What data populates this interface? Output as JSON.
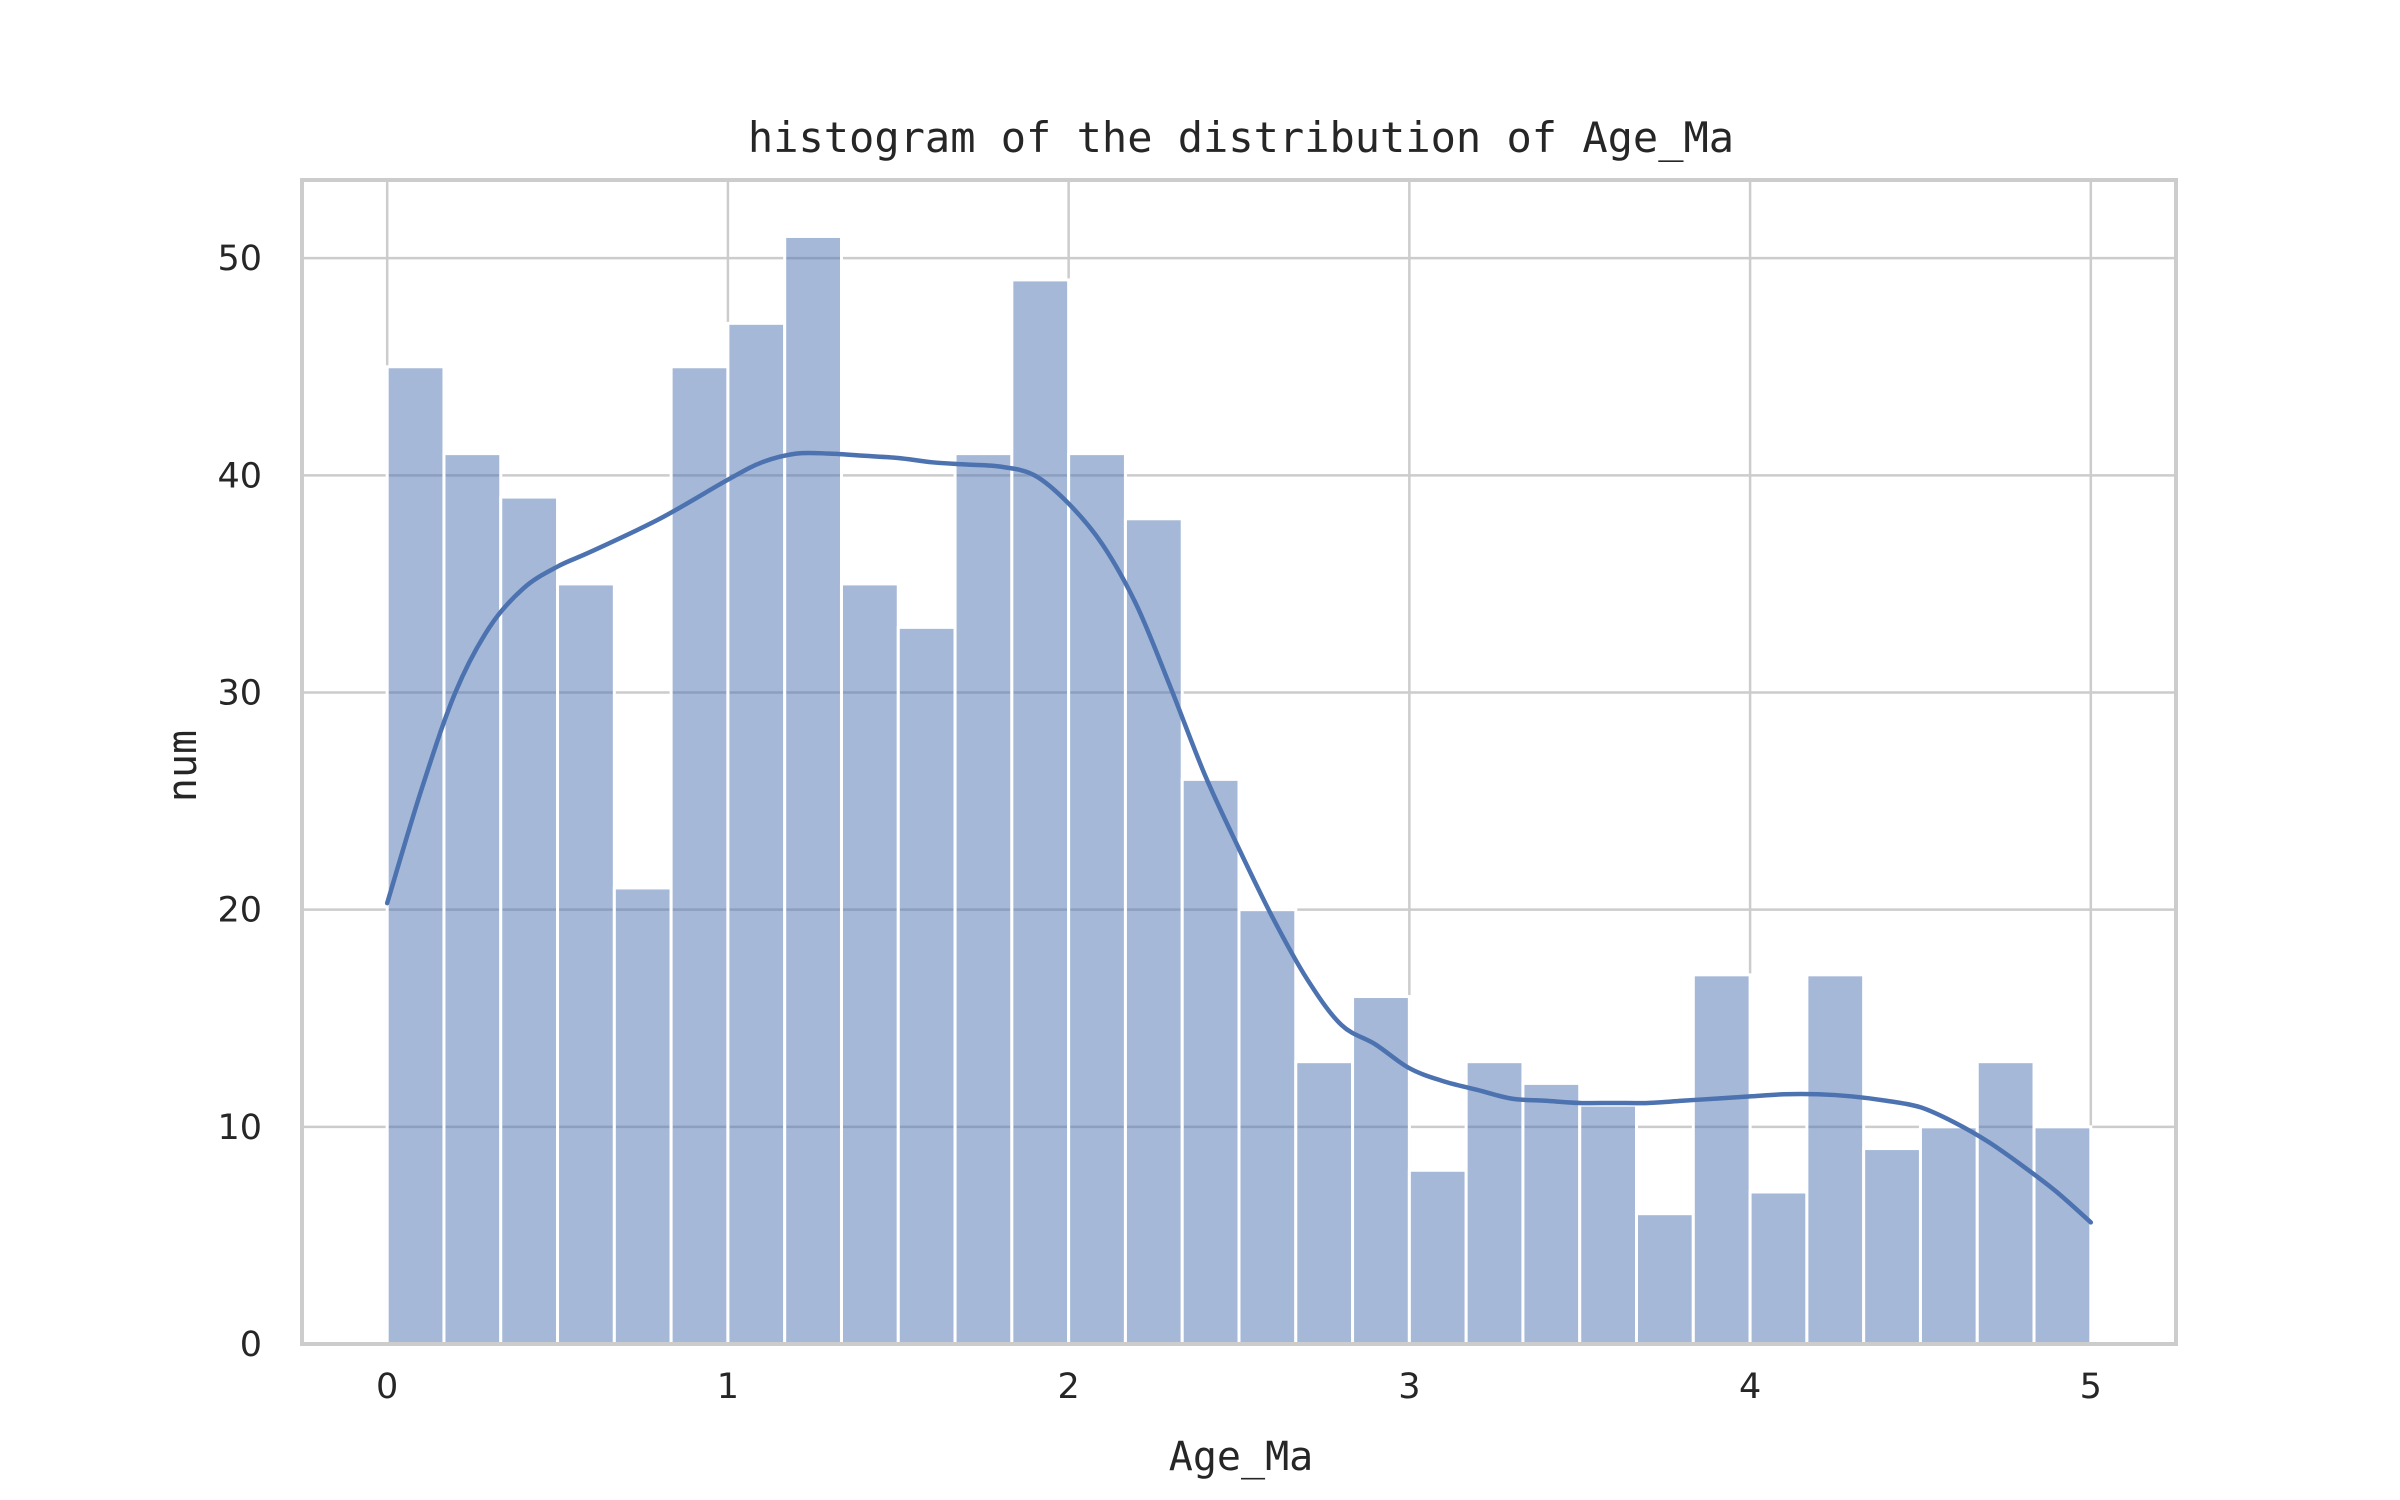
{
  "chart_data": {
    "type": "bar",
    "subtype": "histogram-with-kde",
    "title": "histogram of the distribution of Age_Ma",
    "xlabel": "Age_Ma",
    "ylabel": "num",
    "xlim": [
      -0.25,
      5.25
    ],
    "ylim": [
      0,
      53.6
    ],
    "xticks": [
      0,
      1,
      2,
      3,
      4,
      5
    ],
    "yticks": [
      0,
      10,
      20,
      30,
      40,
      50
    ],
    "grid": true,
    "bin_start": 0.0,
    "bin_end": 5.0,
    "bin_count": 30,
    "values": [
      45,
      41,
      39,
      35,
      21,
      45,
      47,
      51,
      35,
      33,
      41,
      49,
      41,
      38,
      26,
      20,
      13,
      16,
      8,
      13,
      12,
      11,
      6,
      17,
      7,
      17,
      9,
      10,
      13,
      10
    ],
    "kde": {
      "x": [
        0.0,
        0.1,
        0.2,
        0.3,
        0.4,
        0.5,
        0.6,
        0.8,
        1.0,
        1.1,
        1.2,
        1.3,
        1.4,
        1.5,
        1.6,
        1.7,
        1.8,
        1.9,
        2.0,
        2.1,
        2.2,
        2.3,
        2.4,
        2.5,
        2.6,
        2.7,
        2.8,
        2.9,
        3.0,
        3.1,
        3.2,
        3.3,
        3.4,
        3.5,
        3.6,
        3.7,
        3.8,
        3.9,
        4.0,
        4.1,
        4.2,
        4.3,
        4.4,
        4.5,
        4.6,
        4.7,
        4.8,
        4.9,
        5.0
      ],
      "y": [
        20.3,
        25.5,
        30.0,
        33.0,
        34.8,
        35.8,
        36.5,
        38.0,
        39.8,
        40.6,
        41.0,
        41.0,
        40.9,
        40.8,
        40.6,
        40.5,
        40.4,
        40.0,
        38.7,
        36.8,
        34.0,
        30.2,
        26.2,
        22.8,
        19.6,
        16.8,
        14.7,
        13.8,
        12.7,
        12.1,
        11.7,
        11.3,
        11.2,
        11.1,
        11.1,
        11.1,
        11.2,
        11.3,
        11.4,
        11.5,
        11.5,
        11.4,
        11.2,
        10.9,
        10.2,
        9.3,
        8.2,
        7.0,
        5.6
      ]
    },
    "bar_color": "#4c72b0",
    "line_color": "#4c72b0"
  }
}
